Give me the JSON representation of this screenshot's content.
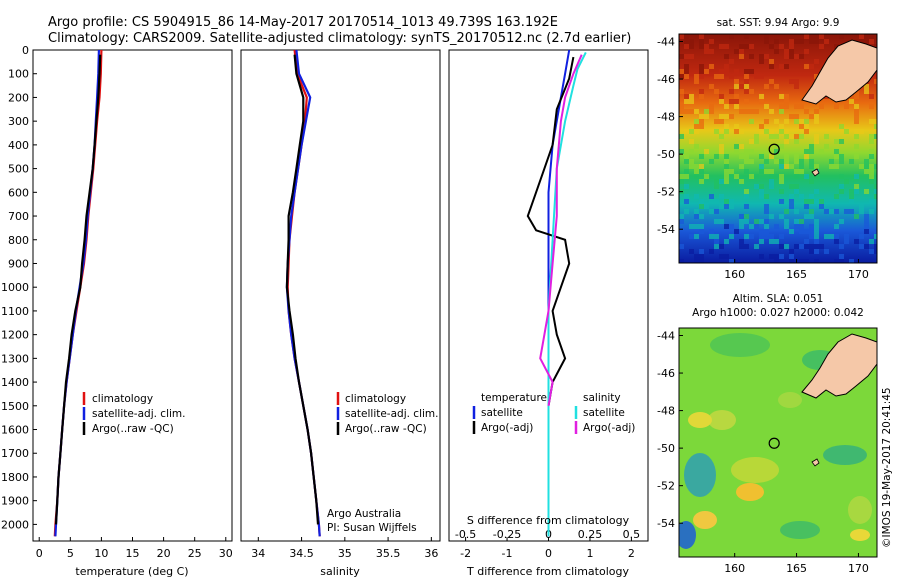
{
  "header": {
    "line1": "Argo profile: CS 5904915_86 14-May-2017 20170514_1013 49.739S 163.192E",
    "line2": "Climatology: CARS2009. Satellite-adjusted climatology: synTS_20170512.nc (2.7d earlier)"
  },
  "colors": {
    "climatology": "#e01010",
    "satellite": "#1020e0",
    "argo": "#000000",
    "salinity_satellite": "#20e0e0",
    "salinity_argo": "#e020e0",
    "land": "#f5c8a8"
  },
  "chart_data": [
    {
      "type": "line",
      "name": "temperature_profile",
      "xlabel": "temperature (deg C)",
      "ylabel": "",
      "xlim": [
        -1,
        31
      ],
      "ylim": [
        2070,
        0
      ],
      "xticks": [
        "0",
        "5",
        "10",
        "15",
        "20",
        "25",
        "30"
      ],
      "yticks": [
        "0",
        "100",
        "200",
        "300",
        "400",
        "500",
        "600",
        "700",
        "800",
        "900",
        "1000",
        "1100",
        "1200",
        "1300",
        "1400",
        "1500",
        "1600",
        "1700",
        "1800",
        "1900",
        "2000"
      ],
      "legend": [
        "climatology",
        "satellite-adj. clim.",
        "Argo(..raw -QC)"
      ],
      "series": [
        {
          "name": "climatology",
          "color": "#e01010",
          "points": [
            [
              10,
              0
            ],
            [
              9.9,
              100
            ],
            [
              9.7,
              200
            ],
            [
              9.3,
              300
            ],
            [
              9.0,
              400
            ],
            [
              8.7,
              500
            ],
            [
              8.3,
              600
            ],
            [
              7.9,
              700
            ],
            [
              7.6,
              800
            ],
            [
              7.2,
              900
            ],
            [
              6.6,
              1000
            ],
            [
              6.0,
              1100
            ],
            [
              5.4,
              1200
            ],
            [
              4.9,
              1300
            ],
            [
              4.4,
              1400
            ],
            [
              4.0,
              1500
            ],
            [
              3.7,
              1600
            ],
            [
              3.4,
              1700
            ],
            [
              3.1,
              1800
            ],
            [
              2.9,
              1900
            ],
            [
              2.6,
              2000
            ],
            [
              2.5,
              2050
            ]
          ]
        },
        {
          "name": "satellite-adj. clim.",
          "color": "#1020e0",
          "points": [
            [
              9.6,
              0
            ],
            [
              9.5,
              100
            ],
            [
              9.3,
              200
            ],
            [
              9.1,
              300
            ],
            [
              8.9,
              400
            ],
            [
              8.6,
              500
            ],
            [
              8.2,
              600
            ],
            [
              7.8,
              700
            ],
            [
              7.5,
              800
            ],
            [
              7.1,
              900
            ],
            [
              6.5,
              1000
            ],
            [
              5.9,
              1100
            ],
            [
              5.4,
              1200
            ],
            [
              4.9,
              1300
            ],
            [
              4.4,
              1400
            ],
            [
              4.0,
              1500
            ],
            [
              3.7,
              1600
            ],
            [
              3.4,
              1700
            ],
            [
              3.1,
              1800
            ],
            [
              2.9,
              1900
            ],
            [
              2.7,
              2000
            ],
            [
              2.6,
              2050
            ]
          ]
        },
        {
          "name": "Argo(..raw -QC)",
          "color": "#000000",
          "points": [
            [
              9.8,
              20
            ],
            [
              9.7,
              100
            ],
            [
              9.5,
              200
            ],
            [
              9.2,
              300
            ],
            [
              8.9,
              400
            ],
            [
              8.6,
              500
            ],
            [
              8.1,
              600
            ],
            [
              7.6,
              700
            ],
            [
              7.3,
              800
            ],
            [
              6.9,
              900
            ],
            [
              6.6,
              1000
            ],
            [
              5.8,
              1100
            ],
            [
              5.2,
              1200
            ],
            [
              4.8,
              1300
            ],
            [
              4.3,
              1400
            ],
            [
              4.0,
              1500
            ],
            [
              3.7,
              1600
            ],
            [
              3.4,
              1700
            ],
            [
              3.1,
              1800
            ],
            [
              2.9,
              1900
            ],
            [
              2.7,
              2000
            ]
          ]
        }
      ]
    },
    {
      "type": "line",
      "name": "salinity_profile",
      "xlabel": "salinity",
      "xlim": [
        33.8,
        36.1
      ],
      "ylim": [
        2070,
        0
      ],
      "xticks": [
        "34",
        "34.5",
        "35",
        "35.5",
        "36"
      ],
      "legend": [
        "climatology",
        "satellite-adj. clim.",
        "Argo(..raw -QC)"
      ],
      "annotation": [
        "Argo Australia",
        "PI: Susan Wijffels"
      ],
      "series": [
        {
          "name": "climatology",
          "color": "#e01010",
          "points": [
            [
              34.42,
              0
            ],
            [
              34.45,
              100
            ],
            [
              34.56,
              200
            ],
            [
              34.54,
              300
            ],
            [
              34.5,
              400
            ],
            [
              34.46,
              500
            ],
            [
              34.42,
              600
            ],
            [
              34.39,
              700
            ],
            [
              34.36,
              800
            ],
            [
              34.35,
              900
            ],
            [
              34.34,
              1000
            ],
            [
              34.35,
              1100
            ],
            [
              34.38,
              1200
            ],
            [
              34.42,
              1300
            ],
            [
              34.47,
              1400
            ],
            [
              34.52,
              1500
            ],
            [
              34.57,
              1600
            ],
            [
              34.61,
              1700
            ],
            [
              34.64,
              1800
            ],
            [
              34.67,
              1900
            ],
            [
              34.7,
              2000
            ],
            [
              34.71,
              2050
            ]
          ]
        },
        {
          "name": "satellite-adj. clim.",
          "color": "#1020e0",
          "points": [
            [
              34.44,
              0
            ],
            [
              34.47,
              100
            ],
            [
              34.6,
              200
            ],
            [
              34.55,
              300
            ],
            [
              34.5,
              400
            ],
            [
              34.46,
              500
            ],
            [
              34.42,
              600
            ],
            [
              34.38,
              700
            ],
            [
              34.36,
              800
            ],
            [
              34.34,
              900
            ],
            [
              34.33,
              1000
            ],
            [
              34.35,
              1100
            ],
            [
              34.38,
              1200
            ],
            [
              34.42,
              1300
            ],
            [
              34.47,
              1400
            ],
            [
              34.52,
              1500
            ],
            [
              34.57,
              1600
            ],
            [
              34.61,
              1700
            ],
            [
              34.64,
              1800
            ],
            [
              34.67,
              1900
            ],
            [
              34.7,
              2000
            ],
            [
              34.71,
              2050
            ]
          ]
        },
        {
          "name": "Argo(..raw -QC)",
          "color": "#000000",
          "points": [
            [
              34.42,
              20
            ],
            [
              34.44,
              100
            ],
            [
              34.52,
              200
            ],
            [
              34.52,
              300
            ],
            [
              34.48,
              400
            ],
            [
              34.44,
              500
            ],
            [
              34.4,
              600
            ],
            [
              34.35,
              700
            ],
            [
              34.35,
              800
            ],
            [
              34.34,
              900
            ],
            [
              34.33,
              1000
            ],
            [
              34.36,
              1100
            ],
            [
              34.4,
              1200
            ],
            [
              34.43,
              1300
            ],
            [
              34.47,
              1400
            ],
            [
              34.52,
              1500
            ],
            [
              34.57,
              1600
            ],
            [
              34.61,
              1700
            ],
            [
              34.64,
              1800
            ],
            [
              34.67,
              1900
            ],
            [
              34.69,
              2000
            ]
          ]
        }
      ]
    },
    {
      "type": "line",
      "name": "difference_profile",
      "xlabel": "T difference from climatology",
      "xlabel_top": "S difference from climatology",
      "xlim": [
        -2.4,
        2.4
      ],
      "ylim": [
        2070,
        0
      ],
      "xticks": [
        "-2",
        "-1",
        "0",
        "1",
        "2"
      ],
      "xticks_top": [
        "-0.5",
        "-0.25",
        "0",
        "0.25",
        "0.5"
      ],
      "legend_headers": [
        "temperature",
        "salinity"
      ],
      "legend_temperature": [
        "satellite",
        "Argo(-adj)"
      ],
      "legend_salinity": [
        "satellite",
        "Argo(-adj)"
      ],
      "series": [
        {
          "name": "temperature satellite",
          "color": "#1020e0",
          "points": [
            [
              0.5,
              0
            ],
            [
              0.4,
              100
            ],
            [
              0.3,
              200
            ],
            [
              0.1,
              400
            ],
            [
              0,
              600
            ],
            [
              0,
              1000
            ],
            [
              0,
              1400
            ],
            [
              0,
              2050
            ]
          ]
        },
        {
          "name": "temperature Argo(-adj)",
          "color": "#000000",
          "points": [
            [
              0.6,
              30
            ],
            [
              0.5,
              120
            ],
            [
              0.2,
              250
            ],
            [
              0.1,
              400
            ],
            [
              -0.1,
              500
            ],
            [
              -0.3,
              600
            ],
            [
              -0.5,
              700
            ],
            [
              -0.3,
              760
            ],
            [
              0.4,
              800
            ],
            [
              0.5,
              900
            ],
            [
              0.3,
              1000
            ],
            [
              0.1,
              1100
            ],
            [
              0.2,
              1200
            ],
            [
              0.4,
              1300
            ],
            [
              0.1,
              1400
            ],
            [
              0,
              1500
            ]
          ]
        },
        {
          "name": "salinity satellite",
          "color": "#20e0e0",
          "points": [
            [
              0.9,
              10
            ],
            [
              0.7,
              80
            ],
            [
              0.6,
              150
            ],
            [
              0.4,
              300
            ],
            [
              0.2,
              500
            ],
            [
              0.1,
              800
            ],
            [
              0,
              1100
            ],
            [
              0,
              1500
            ],
            [
              0,
              2050
            ]
          ]
        },
        {
          "name": "salinity Argo(-adj)",
          "color": "#e020e0",
          "points": [
            [
              0.8,
              20
            ],
            [
              0.6,
              100
            ],
            [
              0.4,
              200
            ],
            [
              0.3,
              300
            ],
            [
              0.2,
              500
            ],
            [
              0.2,
              700
            ],
            [
              0.1,
              900
            ],
            [
              0,
              1100
            ],
            [
              -0.1,
              1200
            ],
            [
              -0.2,
              1300
            ],
            [
              0.1,
              1400
            ],
            [
              0,
              1500
            ]
          ]
        }
      ]
    },
    {
      "type": "heatmap",
      "name": "sst_map",
      "title": "sat. SST: 9.94  Argo: 9.9",
      "xlim": [
        155.5,
        171.5
      ],
      "ylim": [
        -55.8,
        -43.6
      ],
      "xticks": [
        "160",
        "165",
        "170"
      ],
      "yticks": [
        "-44",
        "-46",
        "-48",
        "-50",
        "-52",
        "-54"
      ],
      "argo_position": [
        163.192,
        -49.739
      ]
    },
    {
      "type": "heatmap",
      "name": "sla_map",
      "title_line1": "Altim. SLA: 0.051",
      "title_line2": "Argo h1000: 0.027 h2000: 0.042",
      "xlim": [
        155.5,
        171.5
      ],
      "ylim": [
        -55.8,
        -43.6
      ],
      "xticks": [
        "160",
        "165",
        "170"
      ],
      "yticks": [
        "-44",
        "-46",
        "-48",
        "-50",
        "-52",
        "-54"
      ],
      "argo_position": [
        163.192,
        -49.739
      ]
    }
  ],
  "stamp": "©IMOS 19-May-2017 20:41:45"
}
